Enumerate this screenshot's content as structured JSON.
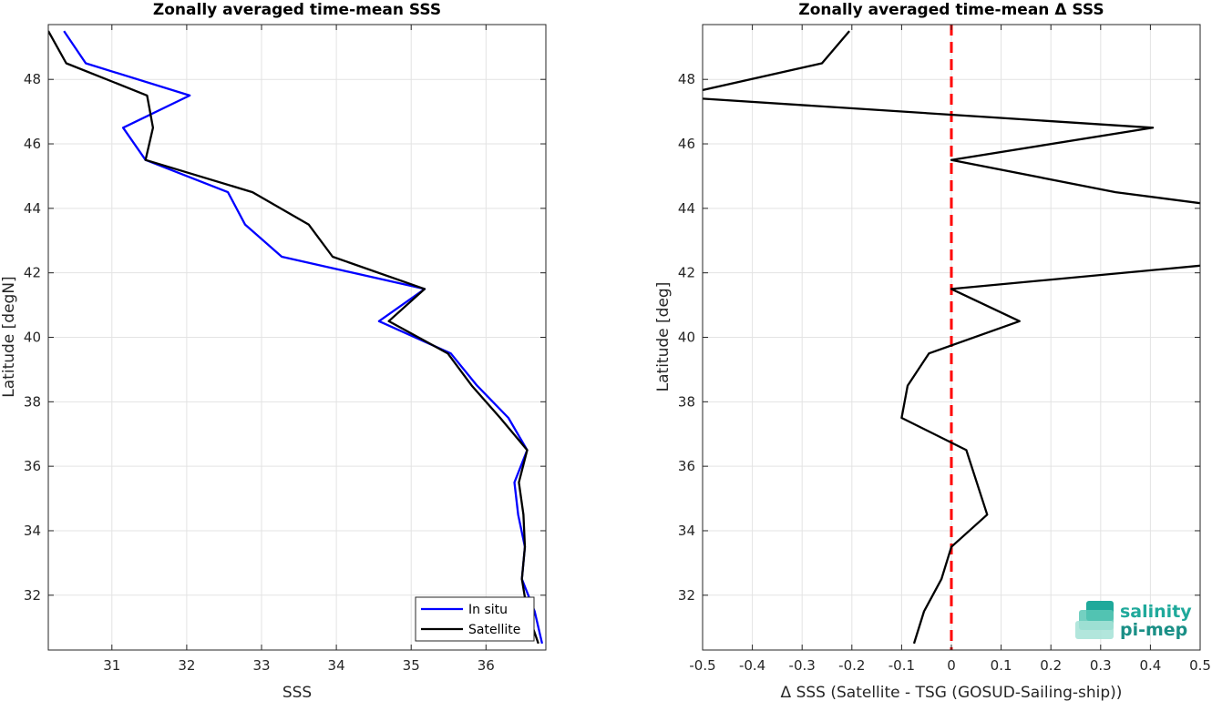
{
  "chart_data": [
    {
      "type": "line",
      "title": "Zonally averaged time-mean SSS",
      "xlabel": "SSS",
      "ylabel": "Latitude [degN]",
      "xlim": [
        30.15,
        36.8
      ],
      "ylim": [
        30.3,
        49.7
      ],
      "xticks": [
        31,
        32,
        33,
        34,
        35,
        36
      ],
      "yticks": [
        32,
        34,
        36,
        38,
        40,
        42,
        44,
        46,
        48
      ],
      "grid": true,
      "legend": "bottom-right",
      "series": [
        {
          "name": "In situ",
          "color": "#0000ff",
          "points": [
            [
              30.36,
              49.5
            ],
            [
              30.65,
              48.5
            ],
            [
              32.04,
              47.5
            ],
            [
              31.15,
              46.5
            ],
            [
              31.45,
              45.5
            ],
            [
              32.55,
              44.5
            ],
            [
              32.78,
              43.5
            ],
            [
              33.27,
              42.5
            ],
            [
              35.18,
              41.5
            ],
            [
              34.57,
              40.5
            ],
            [
              35.53,
              39.5
            ],
            [
              35.88,
              38.5
            ],
            [
              36.3,
              37.5
            ],
            [
              36.55,
              36.5
            ],
            [
              36.38,
              35.5
            ],
            [
              36.43,
              34.5
            ],
            [
              36.52,
              33.5
            ],
            [
              36.48,
              32.5
            ],
            [
              36.65,
              31.5
            ],
            [
              36.75,
              30.5
            ]
          ]
        },
        {
          "name": "Satellite",
          "color": "#000000",
          "points": [
            [
              30.15,
              49.5
            ],
            [
              30.39,
              48.5
            ],
            [
              31.47,
              47.5
            ],
            [
              31.55,
              46.5
            ],
            [
              31.45,
              45.5
            ],
            [
              32.88,
              44.5
            ],
            [
              33.63,
              43.5
            ],
            [
              33.95,
              42.5
            ],
            [
              35.18,
              41.5
            ],
            [
              34.7,
              40.5
            ],
            [
              35.49,
              39.5
            ],
            [
              35.81,
              38.5
            ],
            [
              36.19,
              37.5
            ],
            [
              36.55,
              36.5
            ],
            [
              36.44,
              35.5
            ],
            [
              36.5,
              34.5
            ],
            [
              36.52,
              33.5
            ],
            [
              36.48,
              32.5
            ],
            [
              36.55,
              31.5
            ],
            [
              36.7,
              30.5
            ]
          ]
        }
      ]
    },
    {
      "type": "line",
      "title": "Zonally averaged time-mean Δ SSS",
      "xlabel": "Δ SSS (Satellite - TSG (GOSUD-Sailing-ship))",
      "ylabel": "Latitude [deg]",
      "xlim": [
        -0.5,
        0.5
      ],
      "ylim": [
        30.3,
        49.7
      ],
      "xticks": [
        -0.5,
        -0.4,
        -0.3,
        -0.2,
        -0.1,
        0,
        0.1,
        0.2,
        0.3,
        0.4,
        0.5
      ],
      "xticklabels": [
        "-0.5",
        "-0.4",
        "-0.3",
        "-0.2",
        "-0.1",
        "0",
        "0.1",
        "0.2",
        "0.3",
        "0.4",
        "0.5"
      ],
      "yticks": [
        32,
        34,
        36,
        38,
        40,
        42,
        44,
        46,
        48
      ],
      "grid": true,
      "reference_line": {
        "x": 0,
        "color": "#ff0000",
        "style": "dashed"
      },
      "series": [
        {
          "color": "#000000",
          "points": [
            [
              -0.205,
              49.5
            ],
            [
              -0.26,
              48.5
            ],
            [
              -0.52,
              47.6
            ],
            [
              -0.52,
              47.42
            ],
            [
              0.405,
              46.5
            ],
            [
              0,
              45.5
            ],
            [
              0.33,
              44.5
            ],
            [
              0.52,
              44.12
            ],
            [
              0.52,
              42.25
            ],
            [
              0,
              41.5
            ],
            [
              0.137,
              40.5
            ],
            [
              -0.045,
              39.5
            ],
            [
              -0.088,
              38.5
            ],
            [
              -0.1,
              37.5
            ],
            [
              0.03,
              36.5
            ],
            [
              0.072,
              34.5
            ],
            [
              0,
              33.5
            ],
            [
              -0.02,
              32.5
            ],
            [
              -0.055,
              31.5
            ],
            [
              -0.075,
              30.5
            ]
          ]
        }
      ]
    }
  ],
  "logo": {
    "line1": "salinity",
    "line2": "pi-mep"
  }
}
